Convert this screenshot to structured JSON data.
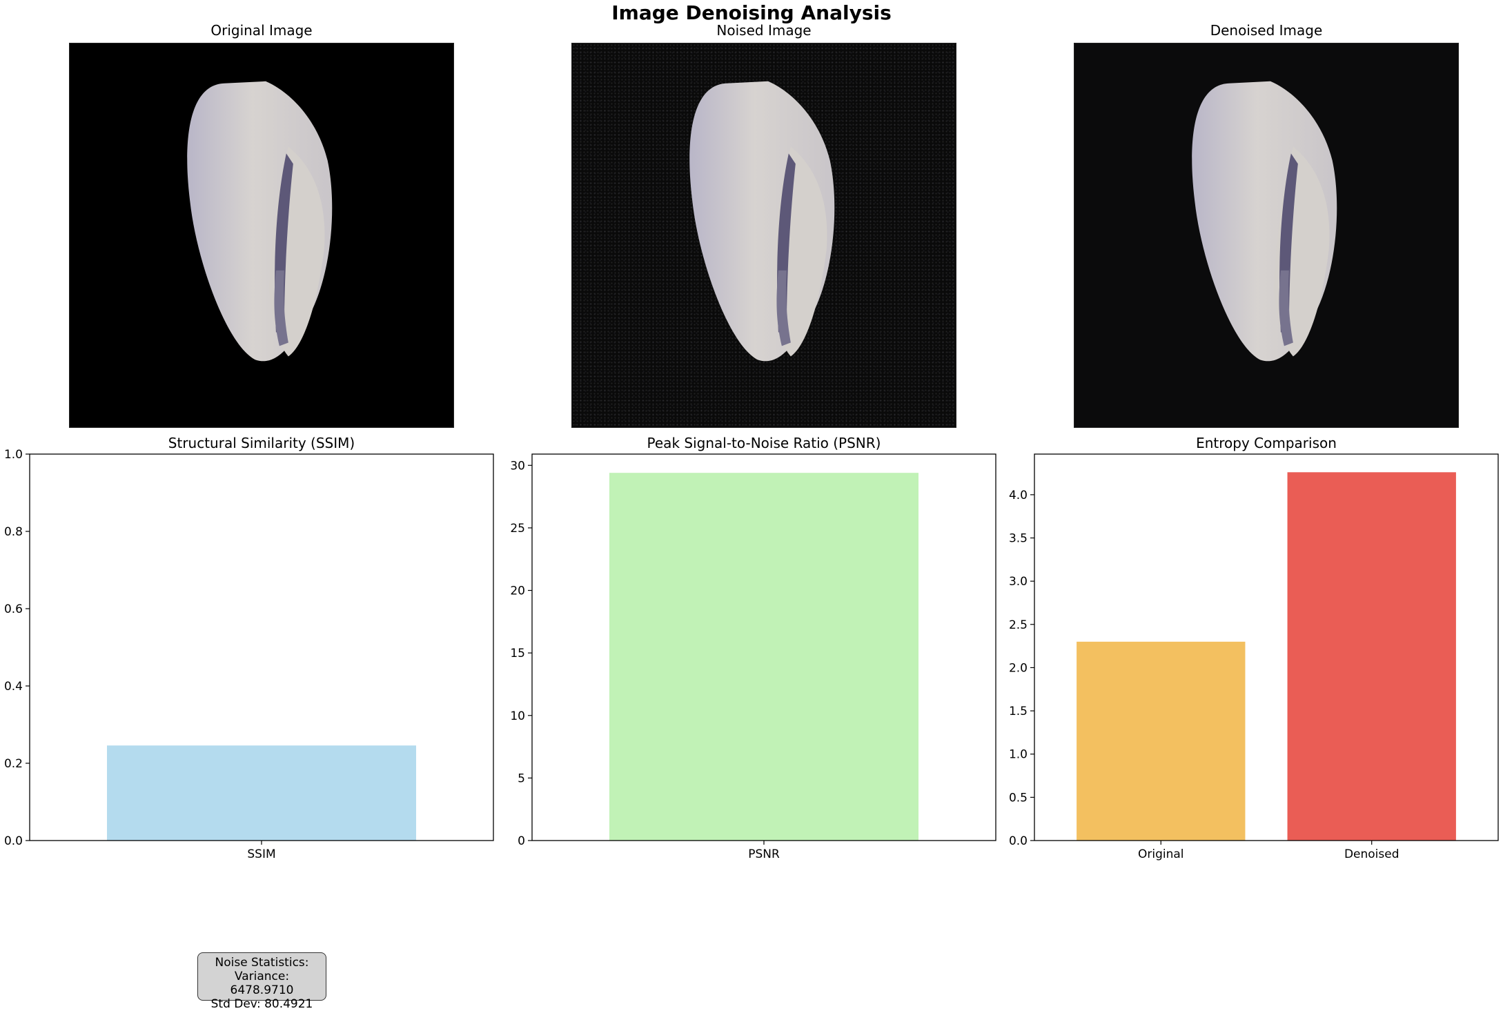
{
  "figure_title": "Image Denoising Analysis",
  "images": [
    {
      "title": "Original Image",
      "variant": "clean"
    },
    {
      "title": "Noised Image",
      "variant": "noisy"
    },
    {
      "title": "Denoised Image",
      "variant": "denoised"
    }
  ],
  "chart_data": [
    {
      "type": "bar",
      "title": "Structural Similarity (SSIM)",
      "categories": [
        "SSIM"
      ],
      "values": [
        0.246
      ],
      "ylim": [
        0,
        1.0
      ],
      "yticks": [
        "0.0",
        "0.2",
        "0.4",
        "0.6",
        "0.8",
        "1.0"
      ],
      "colors": [
        "#b4dbee"
      ],
      "xlabel": "",
      "ylabel": ""
    },
    {
      "type": "bar",
      "title": "Peak Signal-to-Noise Ratio (PSNR)",
      "categories": [
        "PSNR"
      ],
      "values": [
        29.4
      ],
      "ylim": [
        0,
        30.9
      ],
      "yticks": [
        "0",
        "5",
        "10",
        "15",
        "20",
        "25",
        "30"
      ],
      "colors": [
        "#c1f2b6"
      ],
      "xlabel": "",
      "ylabel": ""
    },
    {
      "type": "bar",
      "title": "Entropy Comparison",
      "categories": [
        "Original",
        "Denoised"
      ],
      "values": [
        2.3,
        4.26
      ],
      "ylim": [
        0,
        4.47
      ],
      "yticks": [
        "0.0",
        "0.5",
        "1.0",
        "1.5",
        "2.0",
        "2.5",
        "3.0",
        "3.5",
        "4.0"
      ],
      "colors": [
        "#f3c060",
        "#ea5d55"
      ],
      "xlabel": "",
      "ylabel": ""
    }
  ],
  "noise_stats": {
    "heading": "Noise Statistics:",
    "variance": "Variance: 6478.9710",
    "std_dev": "Std Dev: 80.4921"
  }
}
